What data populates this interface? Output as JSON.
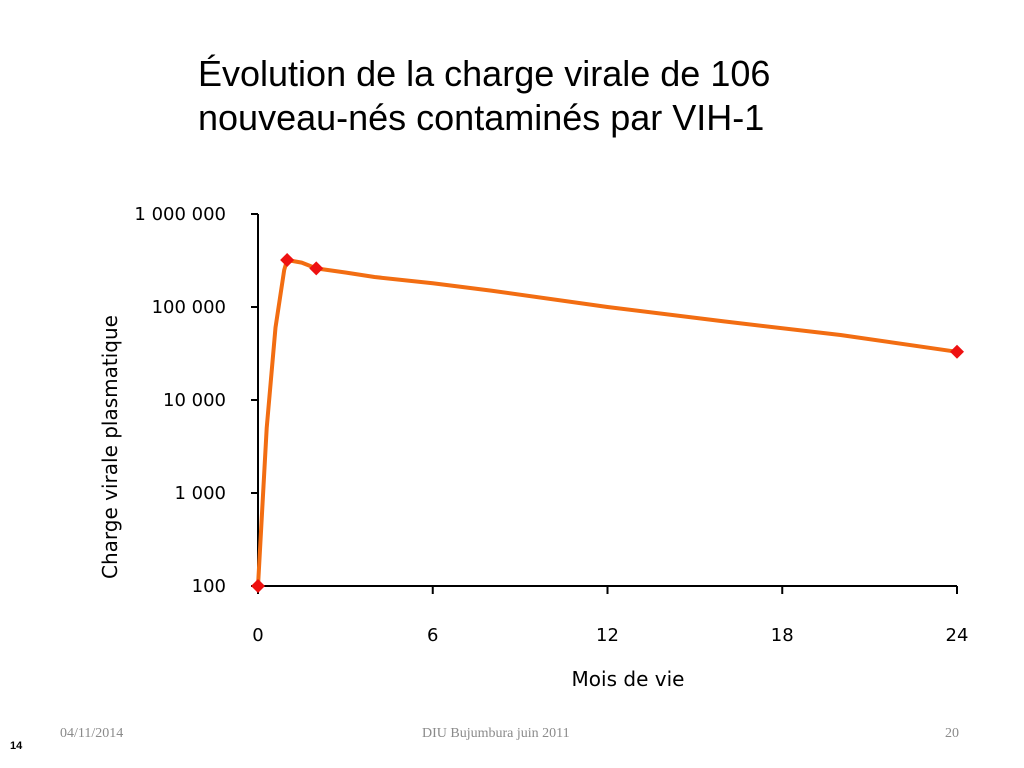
{
  "slide": {
    "title_line1": "Évolution de la charge virale de 106",
    "title_line2": "nouveau-nés contaminés par VIH-1",
    "footer_left": "04/11/2014",
    "footer_center": "DIU Bujumbura juin 2011",
    "footer_right": "20",
    "slide_number": "14"
  },
  "chart_data": {
    "type": "line",
    "xlabel": "Mois de vie",
    "ylabel": "Charge virale plasmatique",
    "xlim": [
      0,
      24
    ],
    "x_ticks": [
      0,
      6,
      12,
      18,
      24
    ],
    "x_tick_labels": [
      "0",
      "6",
      "12",
      "18",
      "24"
    ],
    "y_scale": "log",
    "ylim": [
      100,
      1000000
    ],
    "y_ticks": [
      100,
      1000,
      10000,
      100000,
      1000000
    ],
    "y_tick_labels": [
      "100",
      "1 000",
      "10 000",
      "100 000",
      "1 000 000"
    ],
    "grid": false,
    "line_color": "#f26d12",
    "marker_color": "#ee1111",
    "series": [
      {
        "line_x": [
          0,
          0.3,
          0.6,
          0.9,
          1,
          1.5,
          2,
          3,
          4,
          6,
          8,
          12,
          16,
          20,
          24
        ],
        "line_y": [
          100,
          5000,
          60000,
          250000,
          320000,
          300000,
          260000,
          235000,
          210000,
          180000,
          150000,
          100000,
          70000,
          50000,
          33000
        ],
        "markers_x": [
          0,
          1,
          2,
          24
        ],
        "markers_y": [
          100,
          320000,
          260000,
          33000
        ]
      }
    ]
  }
}
